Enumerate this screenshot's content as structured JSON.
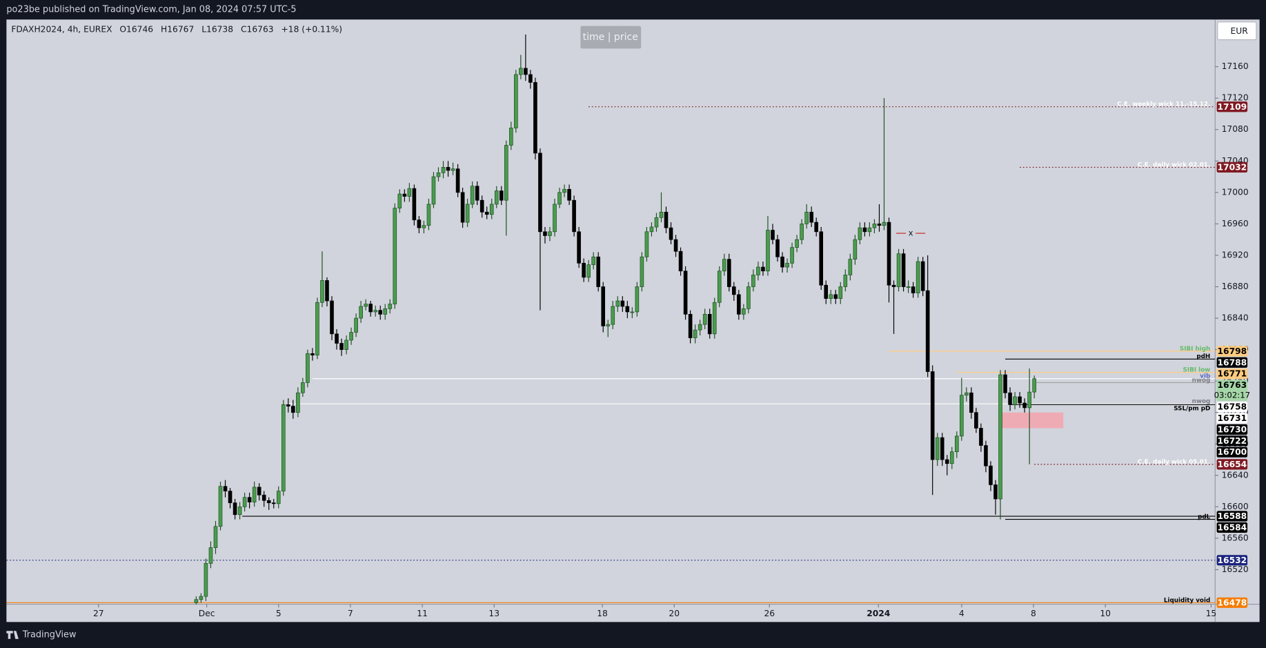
{
  "header": {
    "published": "po23be published on TradingView.com, Jan 08, 2024 07:57 UTC-5",
    "brand": "TradingView"
  },
  "toolbar": {
    "time_price": "time | price",
    "currency": "EUR"
  },
  "chart_data": {
    "type": "candlestick",
    "symbol": "FDAXH2024, 4h, EUREX",
    "legend": [
      "O16746",
      "H16767",
      "L16738",
      "C16763",
      "+18 (+0.11%)"
    ],
    "open": [
      16478,
      16482,
      16486,
      16528,
      16548,
      16575,
      16626,
      16620,
      16605,
      16590,
      16600,
      16612,
      16606,
      16625,
      16615,
      16608,
      16605,
      16604,
      16620,
      16730,
      16728,
      16720,
      16745,
      16758,
      16795,
      16793,
      16860,
      16888,
      16862,
      16820,
      16808,
      16800,
      16812,
      16822,
      16840,
      16855,
      16858,
      16848,
      16850,
      16845,
      16852,
      16858,
      16980,
      16998,
      16995,
      17005,
      16965,
      16955,
      16958,
      16985,
      17020,
      17025,
      17032,
      17028,
      17030,
      17000,
      16962,
      16985,
      17008,
      16990,
      16975,
      16972,
      16985,
      17002,
      16990,
      17060,
      17082,
      17150,
      17158,
      17150,
      17140,
      17050,
      16950,
      16945,
      16950,
      16985,
      17000,
      17004,
      16990,
      16950,
      16910,
      16892,
      16908,
      16918,
      16880,
      16830,
      16832,
      16855,
      16862,
      16855,
      16848,
      16848,
      16880,
      16918,
      16950,
      16956,
      16968,
      16975,
      16955,
      16940,
      16925,
      16900,
      16845,
      16815,
      16825,
      16832,
      16845,
      16820,
      16860,
      16900,
      16915,
      16880,
      16870,
      16845,
      16852,
      16880,
      16895,
      16905,
      16900,
      16952,
      16940,
      16918,
      16905,
      16910,
      16930,
      16940,
      16960,
      16975,
      16962,
      16950,
      16882,
      16865,
      16870,
      16865,
      16880,
      16895,
      16915,
      16940,
      16955,
      16950,
      16955,
      16960,
      16958,
      16962,
      16882,
      16880,
      16922,
      16880,
      16880,
      16872,
      16912,
      16875,
      16772,
      16660,
      16688,
      16660,
      16655,
      16670,
      16690,
      16742,
      16745,
      16720,
      16700,
      16678,
      16652,
      16628,
      16610,
      16768,
      16745,
      16730,
      16740,
      16732,
      16726,
      16746
    ],
    "high": [
      16486,
      16490,
      16534,
      16556,
      16582,
      16632,
      16634,
      16624,
      16610,
      16606,
      16618,
      16618,
      16632,
      16630,
      16620,
      16612,
      16610,
      16626,
      16736,
      16738,
      16736,
      16752,
      16764,
      16800,
      16802,
      16866,
      16925,
      16892,
      16868,
      16826,
      16814,
      16818,
      16828,
      16846,
      16862,
      16864,
      16862,
      16856,
      16856,
      16858,
      16864,
      16986,
      17004,
      17004,
      17012,
      17010,
      16970,
      16964,
      16992,
      17026,
      17032,
      17040,
      17040,
      17038,
      17036,
      17006,
      16992,
      17014,
      17014,
      16996,
      16982,
      16992,
      17008,
      17008,
      17066,
      17090,
      17156,
      17175,
      17201,
      17156,
      17146,
      17056,
      16956,
      16956,
      16992,
      17006,
      17010,
      17010,
      16996,
      16956,
      16916,
      16914,
      16924,
      16924,
      16886,
      16838,
      16862,
      16868,
      16868,
      16862,
      16854,
      16886,
      16924,
      16956,
      16962,
      16974,
      17000,
      16982,
      16962,
      16946,
      16930,
      16906,
      16850,
      16832,
      16838,
      16852,
      16852,
      16866,
      16906,
      16922,
      16922,
      16886,
      16876,
      16858,
      16886,
      16902,
      16912,
      16912,
      16970,
      16960,
      16946,
      16924,
      16916,
      16936,
      16946,
      16966,
      16985,
      16982,
      16968,
      16956,
      16888,
      16876,
      16876,
      16886,
      16902,
      16922,
      16946,
      16962,
      16962,
      16962,
      16966,
      16985,
      17120,
      16968,
      16888,
      16928,
      16928,
      16888,
      16886,
      16918,
      16918,
      16920,
      16780,
      16694,
      16694,
      16666,
      16676,
      16696,
      16764,
      16752,
      16752,
      16726,
      16706,
      16684,
      16658,
      16634,
      16774,
      16774,
      16752,
      16746,
      16746,
      16738,
      16776,
      16767
    ],
    "low": [
      16474,
      16478,
      16480,
      16522,
      16540,
      16570,
      16612,
      16598,
      16584,
      16584,
      16594,
      16598,
      16600,
      16608,
      16600,
      16596,
      16598,
      16598,
      16614,
      16720,
      16712,
      16714,
      16740,
      16752,
      16786,
      16788,
      16854,
      16855,
      16812,
      16800,
      16792,
      16794,
      16806,
      16816,
      16834,
      16850,
      16842,
      16842,
      16838,
      16838,
      16846,
      16852,
      16974,
      16988,
      16988,
      16958,
      16948,
      16948,
      16952,
      16980,
      17014,
      17018,
      17020,
      17022,
      16994,
      16955,
      16956,
      16980,
      16984,
      16968,
      16966,
      16966,
      16980,
      16984,
      16945,
      17054,
      17076,
      17144,
      17142,
      17132,
      17042,
      16850,
      16935,
      16938,
      16944,
      16980,
      16994,
      16984,
      16944,
      16904,
      16886,
      16886,
      16902,
      16874,
      16822,
      16816,
      16826,
      16848,
      16848,
      16840,
      16840,
      16842,
      16874,
      16912,
      16944,
      16950,
      16962,
      16948,
      16934,
      16918,
      16894,
      16838,
      16808,
      16808,
      16818,
      16826,
      16814,
      16814,
      16854,
      16894,
      16874,
      16862,
      16838,
      16838,
      16846,
      16874,
      16888,
      16894,
      16894,
      16934,
      16912,
      16898,
      16898,
      16904,
      16924,
      16934,
      16954,
      16956,
      16944,
      16876,
      16858,
      16858,
      16858,
      16858,
      16874,
      16888,
      16908,
      16934,
      16944,
      16944,
      16948,
      16950,
      16952,
      16860,
      16820,
      16874,
      16874,
      16872,
      16866,
      16866,
      16868,
      16765,
      16615,
      16652,
      16652,
      16640,
      16648,
      16662,
      16684,
      16734,
      16712,
      16694,
      16670,
      16644,
      16620,
      16590,
      16584,
      16738,
      16722,
      16724,
      16726,
      16720,
      16654,
      16738
    ],
    "close": [
      16482,
      16486,
      16528,
      16548,
      16575,
      16626,
      16620,
      16605,
      16590,
      16600,
      16612,
      16606,
      16625,
      16615,
      16608,
      16605,
      16604,
      16620,
      16730,
      16728,
      16720,
      16745,
      16758,
      16795,
      16793,
      16860,
      16888,
      16862,
      16820,
      16808,
      16800,
      16812,
      16822,
      16840,
      16855,
      16858,
      16848,
      16850,
      16845,
      16852,
      16858,
      16980,
      16998,
      16995,
      17005,
      16965,
      16955,
      16958,
      16985,
      17020,
      17025,
      17032,
      17028,
      17030,
      17000,
      16962,
      16985,
      17008,
      16990,
      16975,
      16972,
      16985,
      17002,
      16990,
      17060,
      17082,
      17150,
      17158,
      17150,
      17140,
      17050,
      16950,
      16945,
      16950,
      16985,
      17000,
      17004,
      16990,
      16950,
      16910,
      16892,
      16908,
      16918,
      16880,
      16830,
      16832,
      16855,
      16862,
      16855,
      16848,
      16848,
      16880,
      16918,
      16950,
      16956,
      16968,
      16975,
      16955,
      16940,
      16925,
      16900,
      16845,
      16815,
      16825,
      16832,
      16845,
      16820,
      16860,
      16900,
      16915,
      16880,
      16870,
      16845,
      16852,
      16880,
      16895,
      16905,
      16900,
      16952,
      16940,
      16918,
      16905,
      16910,
      16930,
      16940,
      16960,
      16975,
      16962,
      16950,
      16882,
      16865,
      16870,
      16865,
      16880,
      16895,
      16915,
      16940,
      16955,
      16950,
      16955,
      16960,
      16958,
      16962,
      16882,
      16880,
      16922,
      16880,
      16880,
      16872,
      16912,
      16875,
      16772,
      16660,
      16688,
      16660,
      16655,
      16670,
      16690,
      16742,
      16745,
      16720,
      16700,
      16678,
      16652,
      16628,
      16610,
      16768,
      16745,
      16730,
      16740,
      16732,
      16726,
      16746,
      16763
    ],
    "up_color": "#4a9c4e",
    "down_color": "#000000",
    "xlim": [
      -39.17,
      210.33
    ],
    "xticks": [
      {
        "value": -20.17,
        "label": "27"
      },
      {
        "value": 2.17,
        "label": "Dec"
      },
      {
        "value": 17,
        "label": "5"
      },
      {
        "value": 31.83,
        "label": "7"
      },
      {
        "value": 46.67,
        "label": "11"
      },
      {
        "value": 61.5,
        "label": "13"
      },
      {
        "value": 83.83,
        "label": "18"
      },
      {
        "value": 98.67,
        "label": "20"
      },
      {
        "value": 118.33,
        "label": "26"
      },
      {
        "value": 140.83,
        "label": "2024"
      },
      {
        "value": 158,
        "label": "4"
      },
      {
        "value": 172.83,
        "label": "8"
      },
      {
        "value": 187.67,
        "label": "10"
      },
      {
        "value": 209.5,
        "label": "15"
      }
    ],
    "ylim": [
      16476,
      17220
    ],
    "yticks": [
      16520,
      16560,
      16600,
      16640,
      16680,
      16720,
      16760,
      16800,
      16840,
      16880,
      16920,
      16960,
      17000,
      17040,
      17080,
      17120,
      17160
    ],
    "grid": false,
    "levels": [
      {
        "value": 17109,
        "color": "#801922",
        "text_color": "#ffffff",
        "line": "dotted",
        "from": 81,
        "note": "C.E. weekly wick 11.-15.12.",
        "note_color": "#ffffff"
      },
      {
        "value": 17032,
        "color": "#801922",
        "text_color": "#ffffff",
        "line": "dotted",
        "from": 170,
        "note": "C.E. daily wick 02.01.",
        "note_color": "#ffffff"
      },
      {
        "value": 16798,
        "color": "#ffcc80",
        "text_color": "#000000",
        "line": "solid",
        "from": 143,
        "note": "SIBI high",
        "note_color": "#66bb6a"
      },
      {
        "value": 16788,
        "color": "#000000",
        "text_color": "#ffffff",
        "line": "solid",
        "from": 167,
        "note": "pdH",
        "note_color": "#000000"
      },
      {
        "value": 16771,
        "color": "#ffcc80",
        "text_color": "#000000",
        "line": "solid",
        "from": 157,
        "note": "SIBI low",
        "note_color": "#66bb6a"
      },
      {
        "value": 16763,
        "color": "#a5d6a7",
        "text_color": "#000000",
        "line": "solid",
        "line_color": "#ffffff",
        "from": 24,
        "note": "vib",
        "note_color": "#5c6bc0",
        "countdown": "03:02:17"
      },
      {
        "value": 16758,
        "color": "#ffffff",
        "text_color": "#000000",
        "line": "solid",
        "line_color": "#9e9e9e",
        "from": 173,
        "note": "nwog",
        "note_color": "#787b86"
      },
      {
        "value": 16731,
        "color": "#ffffff",
        "text_color": "#000000",
        "line": "solid",
        "line_color": "#ffffff",
        "from": 19,
        "note": "nwog",
        "note_color": "#787b86"
      },
      {
        "value": 16730,
        "color": "#000000",
        "text_color": "#ffffff",
        "line": "solid",
        "from": 168
      },
      {
        "value": 16722,
        "color": "#000000",
        "text_color": "#ffffff",
        "line": "none",
        "from": 168,
        "note": "SSL/pm pD",
        "note_color": "#000000"
      },
      {
        "value": 16700,
        "color": "#000000",
        "text_color": "#ffffff",
        "line": "none",
        "from": 166
      },
      {
        "value": 16654,
        "color": "#801922",
        "text_color": "#ffffff",
        "line": "dotted",
        "from": 173,
        "note": "C.E. daily wick 05.01.",
        "note_color": "#ffffff"
      },
      {
        "value": 16588,
        "color": "#000000",
        "text_color": "#ffffff",
        "line": "solid",
        "from": 9.5
      },
      {
        "value": 16584,
        "color": "#000000",
        "text_color": "#ffffff",
        "line": "solid",
        "from": 167,
        "note": "pdL",
        "note_color": "#000000"
      },
      {
        "value": 16532,
        "color": "#1a237e",
        "text_color": "#ffffff",
        "line": "dotted",
        "from": -39.17
      },
      {
        "value": 16478,
        "color": "#f57c00",
        "text_color": "#ffffff",
        "line": "solid",
        "from": -39.17,
        "note": "Liquidity void",
        "note_color": "#000000"
      }
    ],
    "zones": [
      {
        "low": 16700,
        "high": 16720,
        "from": 165.7,
        "to": 179,
        "color": "#f4a3ad"
      }
    ],
    "markers": [
      {
        "label": "x",
        "value": 16948,
        "at": 147.5,
        "color": "#c62828"
      }
    ]
  }
}
